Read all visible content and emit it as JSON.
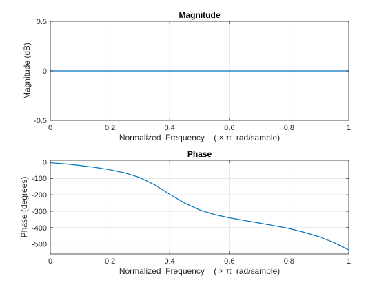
{
  "chart_data": [
    {
      "type": "line",
      "title": "Magnitude",
      "xlabel": "Normalized  Frequency    ( × π  rad/sample)",
      "ylabel": "Magnitude (dB)",
      "xlim": [
        0,
        1
      ],
      "ylim": [
        -0.5,
        0.5
      ],
      "xticks": [
        0,
        0.2,
        0.4,
        0.6,
        0.8,
        1
      ],
      "xtick_labels": [
        "0",
        "0.2",
        "0.4",
        "0.6",
        "0.8",
        "1"
      ],
      "yticks": [
        -0.5,
        0,
        0.5
      ],
      "ytick_labels": [
        "-0.5",
        "0",
        "0.5"
      ],
      "grid": true,
      "series": [
        {
          "x": [
            0,
            0.1,
            0.2,
            0.3,
            0.4,
            0.5,
            0.6,
            0.7,
            0.8,
            0.9,
            1.0
          ],
          "y": [
            0,
            0,
            0,
            0,
            0,
            0,
            0,
            0,
            0,
            0,
            0
          ],
          "color": "#0072bd"
        }
      ]
    },
    {
      "type": "line",
      "title": "Phase",
      "xlabel": "Normalized  Frequency    ( × π  rad/sample)",
      "ylabel": "Phase (degrees)",
      "xlim": [
        0,
        1
      ],
      "ylim": [
        -560,
        10
      ],
      "xticks": [
        0,
        0.2,
        0.4,
        0.6,
        0.8,
        1
      ],
      "xtick_labels": [
        "0",
        "0.2",
        "0.4",
        "0.6",
        "0.8",
        "1"
      ],
      "yticks": [
        0,
        -100,
        -200,
        -300,
        -400,
        -500
      ],
      "ytick_labels": [
        "0",
        "-100",
        "-200",
        "-300",
        "-400",
        "-500"
      ],
      "grid": true,
      "series": [
        {
          "x": [
            0,
            0.05,
            0.1,
            0.15,
            0.2,
            0.25,
            0.3,
            0.35,
            0.4,
            0.45,
            0.5,
            0.55,
            0.6,
            0.65,
            0.7,
            0.75,
            0.8,
            0.85,
            0.9,
            0.95,
            1.0
          ],
          "y": [
            -5,
            -12,
            -22,
            -33,
            -48,
            -67,
            -95,
            -140,
            -197,
            -250,
            -292,
            -320,
            -340,
            -356,
            -372,
            -388,
            -405,
            -428,
            -455,
            -490,
            -535
          ],
          "color": "#0072bd"
        }
      ]
    }
  ]
}
